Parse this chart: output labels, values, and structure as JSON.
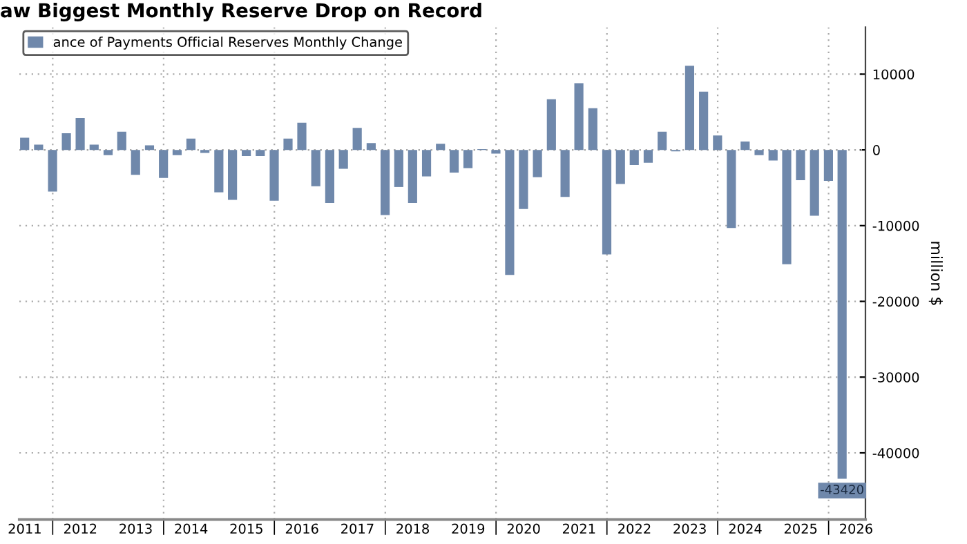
{
  "chart_data": {
    "type": "bar",
    "title": "aw Biggest Monthly Reserve Drop on Record",
    "ylabel": "million $",
    "x": [
      "2011-06-30",
      "2011-09-30",
      "2011-12-31",
      "2012-03-31",
      "2012-06-30",
      "2012-09-30",
      "2012-12-31",
      "2013-03-31",
      "2013-06-30",
      "2013-09-30",
      "2013-12-31",
      "2014-03-31",
      "2014-06-30",
      "2014-09-30",
      "2014-12-31",
      "2015-03-31",
      "2015-06-30",
      "2015-09-30",
      "2015-12-31",
      "2016-03-31",
      "2016-06-30",
      "2016-09-30",
      "2016-12-31",
      "2017-03-31",
      "2017-06-30",
      "2017-09-30",
      "2017-12-31",
      "2018-03-31",
      "2018-06-30",
      "2018-09-30",
      "2018-12-31",
      "2019-03-31",
      "2019-06-30",
      "2019-09-30",
      "2019-12-31",
      "2020-03-31",
      "2020-06-30",
      "2020-09-30",
      "2020-12-31",
      "2021-03-31",
      "2021-06-30",
      "2021-09-30",
      "2021-12-31",
      "2022-03-31",
      "2022-06-30",
      "2022-09-30",
      "2022-12-31",
      "2023-03-31",
      "2023-06-30",
      "2023-09-30",
      "2023-12-31",
      "2024-03-31",
      "2024-06-30",
      "2024-09-30",
      "2024-12-31",
      "2025-03-31",
      "2025-06-30",
      "2025-09-30",
      "2025-12-31",
      "2026-03-31"
    ],
    "series": [
      {
        "name": "ance of Payments Official Reserves Monthly Change",
        "color": "#6f88ab",
        "values": [
          1600,
          700,
          -5500,
          2200,
          4200,
          700,
          -700,
          2400,
          -3300,
          600,
          -3700,
          -700,
          1500,
          -400,
          -5600,
          -6600,
          -800,
          -800,
          -6700,
          1500,
          3600,
          -4800,
          -7000,
          -2500,
          2900,
          900,
          -8600,
          -4900,
          -7000,
          -3500,
          800,
          -3000,
          -2400,
          100,
          -500,
          -16500,
          -7800,
          -3600,
          6700,
          -6200,
          8800,
          5500,
          -13800,
          -4500,
          -2000,
          -1700,
          2400,
          -200,
          11100,
          7700,
          1900,
          -10300,
          1100,
          -700,
          -1400,
          -15100,
          -4000,
          -8700,
          -4100,
          -43420
        ],
        "value_labels": [
          null,
          null,
          null,
          null,
          null,
          null,
          null,
          null,
          null,
          null,
          null,
          null,
          null,
          null,
          null,
          null,
          null,
          null,
          null,
          null,
          null,
          null,
          null,
          null,
          null,
          null,
          null,
          null,
          null,
          null,
          null,
          null,
          null,
          null,
          null,
          null,
          null,
          null,
          null,
          null,
          null,
          null,
          null,
          null,
          null,
          null,
          null,
          null,
          null,
          null,
          null,
          null,
          null,
          null,
          null,
          null,
          null,
          null,
          null,
          "-43420"
        ]
      }
    ],
    "xlim": [
      "2011-05-26",
      "2026-09-01"
    ],
    "xticks": [
      {
        "value": "2011-07-01",
        "label": "2011"
      },
      {
        "value": "2012-01-01",
        "label": null
      },
      {
        "value": "2012-07-01",
        "label": "2012"
      },
      {
        "value": "2013-07-01",
        "label": "2013"
      },
      {
        "value": "2014-01-01",
        "label": null
      },
      {
        "value": "2014-07-01",
        "label": "2014"
      },
      {
        "value": "2015-07-01",
        "label": "2015"
      },
      {
        "value": "2016-01-01",
        "label": null
      },
      {
        "value": "2016-07-01",
        "label": "2016"
      },
      {
        "value": "2017-07-01",
        "label": "2017"
      },
      {
        "value": "2018-01-01",
        "label": null
      },
      {
        "value": "2018-07-01",
        "label": "2018"
      },
      {
        "value": "2019-07-01",
        "label": "2019"
      },
      {
        "value": "2020-01-01",
        "label": null
      },
      {
        "value": "2020-07-01",
        "label": "2020"
      },
      {
        "value": "2021-07-01",
        "label": "2021"
      },
      {
        "value": "2022-01-01",
        "label": null
      },
      {
        "value": "2022-07-01",
        "label": "2022"
      },
      {
        "value": "2023-07-01",
        "label": "2023"
      },
      {
        "value": "2024-01-01",
        "label": null
      },
      {
        "value": "2024-07-01",
        "label": "2024"
      },
      {
        "value": "2025-07-01",
        "label": "2025"
      },
      {
        "value": "2026-01-01",
        "label": null
      },
      {
        "value": "2026-07-01",
        "label": "2026"
      }
    ],
    "ylim": [
      -48800,
      16200
    ],
    "yticks": [
      -40000,
      -30000,
      -20000,
      -10000,
      0,
      10000
    ],
    "grid": true,
    "legend": "top left"
  }
}
